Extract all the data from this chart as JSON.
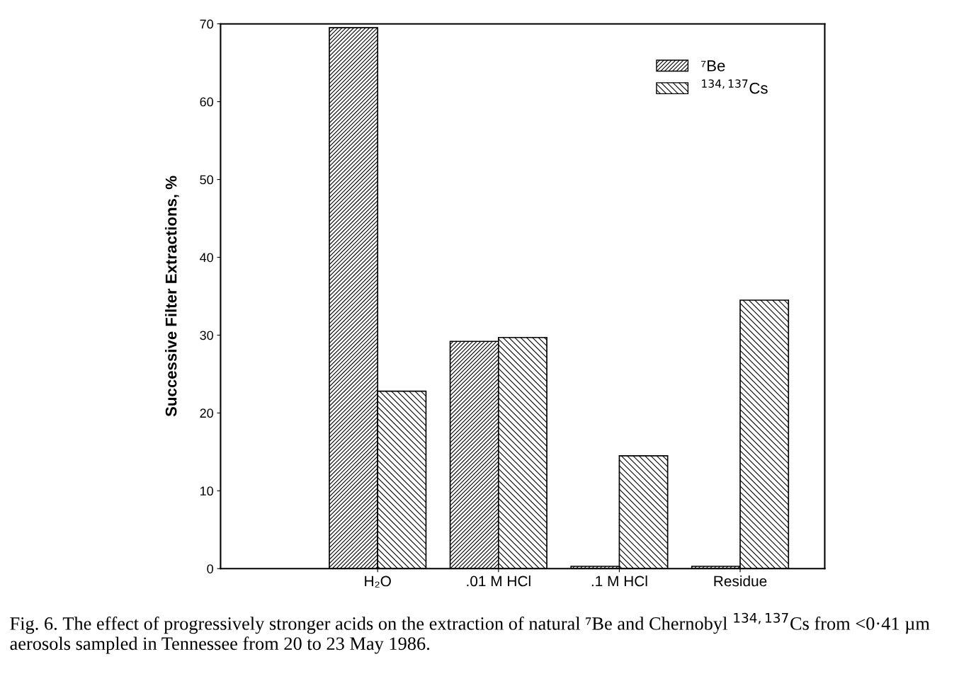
{
  "chart_data": {
    "type": "bar",
    "ylabel": "Successive Filter Extractions, %",
    "categories": [
      "H₂O",
      ".01 M HCl",
      ".1 M HCl",
      "Residue"
    ],
    "series": [
      {
        "name": "⁷Be",
        "color": "#000000",
        "values": [
          69.5,
          29.2,
          0.3,
          0.3
        ]
      },
      {
        "name": "$^{134,137}$Cs",
        "color": "#000000",
        "values": [
          22.8,
          29.7,
          14.5,
          34.5
        ]
      }
    ],
    "ylim": [
      0,
      70
    ],
    "yticks": [
      0,
      10,
      20,
      30,
      40,
      50,
      60,
      70
    ],
    "grid": false,
    "legend": "top right",
    "annotations": [
      "Fig. 6. The effect of progressively stronger acids on the extraction of natural ⁷Be and Chernobyl $^{134,137}$Cs from <0·41 µm aerosols sampled in Tennessee from 20 to 23 May 1986."
    ]
  }
}
